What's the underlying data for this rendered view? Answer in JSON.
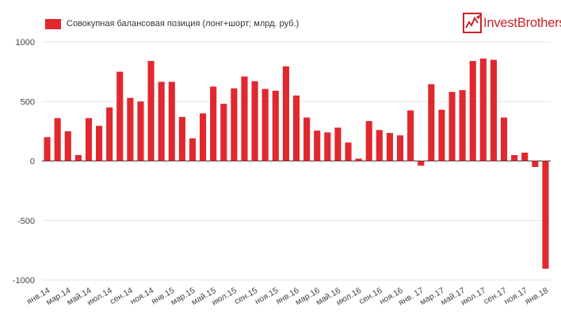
{
  "legend": {
    "label": "Совокупная балансовая позиция (лонг+шорт; млрд. руб.)",
    "color": "#e0282e"
  },
  "logo": {
    "text": "InvestBrothers",
    "color": "#c8232a"
  },
  "chart_data": {
    "type": "bar",
    "title": "",
    "xlabel": "",
    "ylabel": "",
    "ylim": [
      -1000,
      1000
    ],
    "yticks": [
      -1000,
      -500,
      0,
      500,
      1000
    ],
    "grid": "horizontal",
    "legend_position": "top-left",
    "bar_color": "#e0282e",
    "categories": [
      "янв.14",
      "фев.14",
      "мар.14",
      "апр.14",
      "май.14",
      "июн.14",
      "июл.14",
      "авг.14",
      "сен.14",
      "окт.14",
      "ноя.14",
      "дек.14",
      "янв.15",
      "фев.15",
      "мар.15",
      "апр.15",
      "май.15",
      "июн.15",
      "июл.15",
      "авг.15",
      "сен.15",
      "окт.15",
      "ноя.15",
      "дек.15",
      "янв.16",
      "фев.16",
      "мар.16",
      "апр.16",
      "май.16",
      "июн.16",
      "июл.16",
      "авг.16",
      "сен.16",
      "окт.16",
      "ноя.16",
      "дек.16",
      "янв. 17",
      "фев.17",
      "мар.17",
      "апр.17",
      "май.17",
      "июн.17",
      "июл.17",
      "авг.17",
      "сен.17",
      "окт.17",
      "ноя.17",
      "дек.17",
      "янв.18"
    ],
    "tick_labels": [
      "янв.14",
      "мар.14",
      "май.14",
      "июл.14",
      "сен.14",
      "ноя.14",
      "янв.15",
      "мар.15",
      "май.15",
      "июл.15",
      "сен.15",
      "ноя.15",
      "янв.16",
      "мар.16",
      "май.16",
      "июл.16",
      "сен.16",
      "ноя.16",
      "янв. 17",
      "мар.17",
      "май.17",
      "июл.17",
      "сен.17",
      "ноя.17",
      "янв.18"
    ],
    "series": [
      {
        "values": [
          200,
          360,
          250,
          50,
          360,
          295,
          450,
          750,
          530,
          500,
          840,
          665,
          665,
          370,
          190,
          400,
          625,
          480,
          610,
          710,
          670,
          605,
          590,
          795,
          550,
          365,
          255,
          240,
          280,
          155,
          20,
          335,
          260,
          235,
          215,
          425,
          -40,
          645,
          430,
          580,
          595,
          840,
          860,
          850,
          365,
          50,
          70,
          -50,
          -905
        ]
      }
    ]
  }
}
